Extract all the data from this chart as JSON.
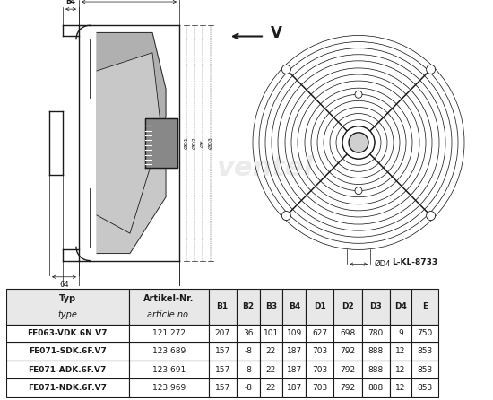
{
  "table_headers": [
    "Typ\ntype",
    "Artikel-Nr.\narticle no.",
    "B1",
    "B2",
    "B3",
    "B4",
    "D1",
    "D2",
    "D3",
    "D4",
    "E"
  ],
  "table_rows": [
    [
      "FE063-VDK.6N.V7",
      "121 272",
      "207",
      "36",
      "101",
      "109",
      "627",
      "698",
      "780",
      "9",
      "750"
    ],
    [
      "FE071-SDK.6F.V7",
      "123 689",
      "157",
      "-8",
      "22",
      "187",
      "703",
      "792",
      "888",
      "12",
      "853"
    ],
    [
      "FE071-ADK.6F.V7",
      "123 691",
      "157",
      "-8",
      "22",
      "187",
      "703",
      "792",
      "888",
      "12",
      "853"
    ],
    [
      "FE071-NDK.6F.V7",
      "123 969",
      "157",
      "-8",
      "22",
      "187",
      "703",
      "792",
      "888",
      "12",
      "853"
    ]
  ],
  "drawing_label": "L-KL-8733",
  "doc_number": "8733",
  "bg_color": "#ffffff",
  "line_color": "#1a1a1a",
  "watermark_color": "#e0e0e0"
}
